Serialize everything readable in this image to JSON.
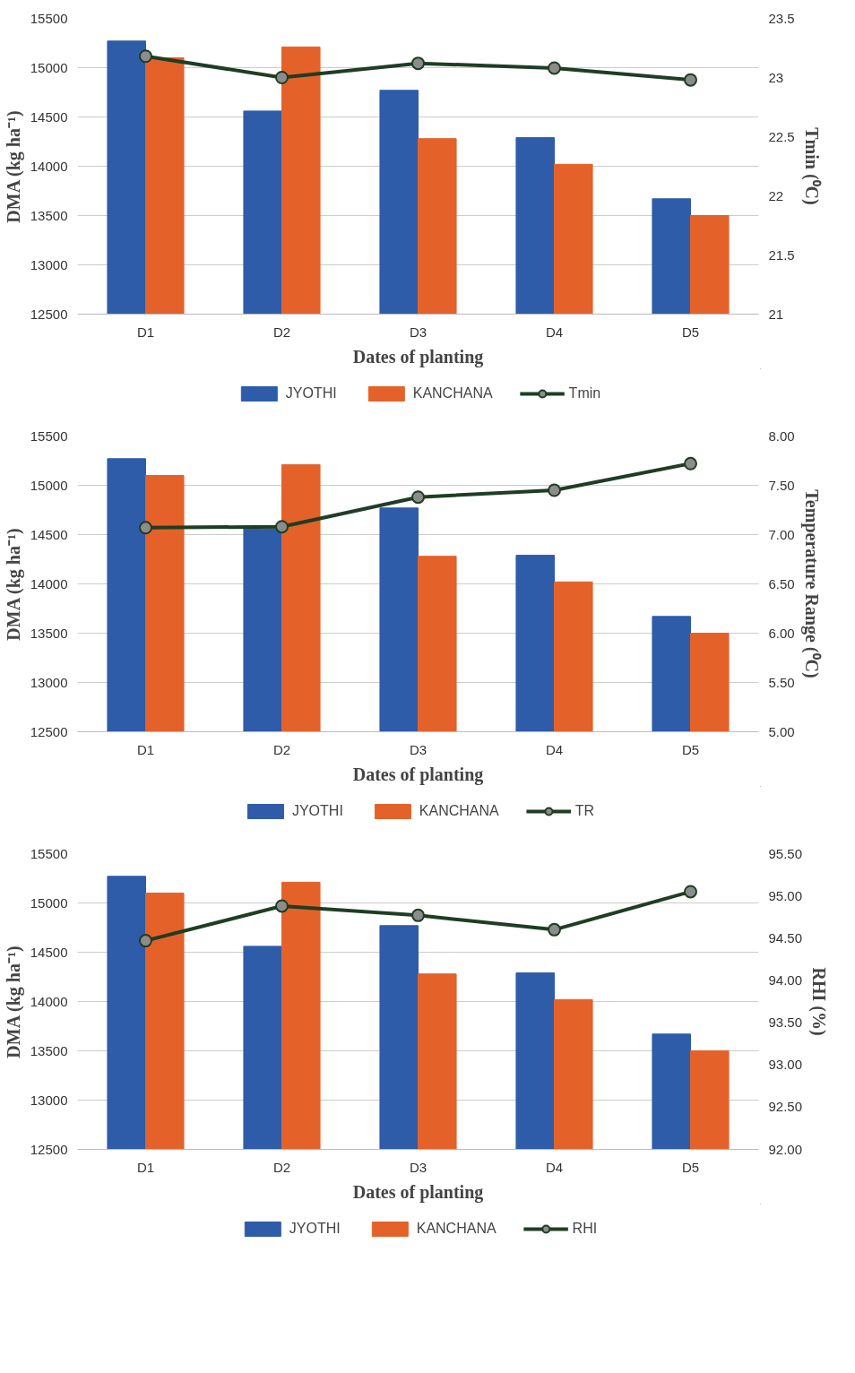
{
  "chart_data": [
    {
      "type": "bar",
      "xlabel": "Dates of planting",
      "ylabel": "DMA (kg ha⁻¹)",
      "y2label": "Tmin (⁰C)",
      "categories": [
        "D1",
        "D2",
        "D3",
        "D4",
        "D5"
      ],
      "series": [
        {
          "name": "JYOTHI",
          "color": "#2e5ca8",
          "values": [
            15270,
            14560,
            14770,
            14290,
            13670
          ]
        },
        {
          "name": "KANCHANA",
          "color": "#e4622a",
          "values": [
            15100,
            15210,
            14280,
            14020,
            13500
          ]
        },
        {
          "name": "Tmin",
          "type": "line",
          "axis": "y2",
          "color": "#1f3d22",
          "marker": "circle",
          "values": [
            23.18,
            23.0,
            23.12,
            23.08,
            22.98
          ]
        }
      ],
      "ylim": [
        12500,
        15500
      ],
      "yticks": [
        12500,
        13000,
        13500,
        14000,
        14500,
        15000,
        15500
      ],
      "y2lim": [
        21,
        23.5
      ],
      "y2ticks": [
        21,
        21.5,
        22,
        22.5,
        23,
        23.5
      ],
      "grid": "y",
      "legend": "bottom"
    },
    {
      "type": "bar",
      "xlabel": "Dates of planting",
      "ylabel": "DMA (kg ha⁻¹)",
      "y2label": "Temperature Range (⁰C)",
      "categories": [
        "D1",
        "D2",
        "D3",
        "D4",
        "D5"
      ],
      "series": [
        {
          "name": "JYOTHI",
          "color": "#2e5ca8",
          "values": [
            15270,
            14560,
            14770,
            14290,
            13670
          ]
        },
        {
          "name": "KANCHANA",
          "color": "#e4622a",
          "values": [
            15100,
            15210,
            14280,
            14020,
            13500
          ]
        },
        {
          "name": "TR",
          "type": "line",
          "axis": "y2",
          "color": "#1f3d22",
          "marker": "circle",
          "values": [
            7.07,
            7.08,
            7.38,
            7.45,
            7.72
          ]
        }
      ],
      "ylim": [
        12500,
        15500
      ],
      "yticks": [
        12500,
        13000,
        13500,
        14000,
        14500,
        15000,
        15500
      ],
      "y2lim": [
        5,
        8
      ],
      "y2ticks": [
        {
          "value": 5,
          "label": "5.00"
        },
        {
          "value": 5.5,
          "label": "5.50"
        },
        {
          "value": 6,
          "label": "6.00"
        },
        {
          "value": 6.5,
          "label": "6.50"
        },
        {
          "value": 7,
          "label": "7.00"
        },
        {
          "value": 7.5,
          "label": "7.50"
        },
        {
          "value": 8,
          "label": "8.00"
        }
      ],
      "grid": "y",
      "legend": "bottom"
    },
    {
      "type": "bar",
      "xlabel": "Dates of planting",
      "ylabel": "DMA (kg ha⁻¹)",
      "y2label": "RHI (%)",
      "categories": [
        "D1",
        "D2",
        "D3",
        "D4",
        "D5"
      ],
      "series": [
        {
          "name": "JYOTHI",
          "color": "#2e5ca8",
          "values": [
            15270,
            14560,
            14770,
            14290,
            13670
          ]
        },
        {
          "name": "KANCHANA",
          "color": "#e4622a",
          "values": [
            15100,
            15210,
            14280,
            14020,
            13500
          ]
        },
        {
          "name": "RHI",
          "type": "line",
          "axis": "y2",
          "color": "#1f3d22",
          "marker": "circle",
          "values": [
            94.47,
            94.88,
            94.77,
            94.6,
            95.05
          ]
        }
      ],
      "ylim": [
        12500,
        15500
      ],
      "yticks": [
        12500,
        13000,
        13500,
        14000,
        14500,
        15000,
        15500
      ],
      "y2lim": [
        92,
        95.5
      ],
      "y2ticks": [
        {
          "value": 92,
          "label": "92.00"
        },
        {
          "value": 92.5,
          "label": "92.50"
        },
        {
          "value": 93,
          "label": "93.00"
        },
        {
          "value": 93.5,
          "label": "93.50"
        },
        {
          "value": 94,
          "label": "94.00"
        },
        {
          "value": 94.5,
          "label": "94.50"
        },
        {
          "value": 95,
          "label": "95.00"
        },
        {
          "value": 95.5,
          "label": "95.50"
        }
      ],
      "grid": "y",
      "legend": "bottom"
    }
  ]
}
